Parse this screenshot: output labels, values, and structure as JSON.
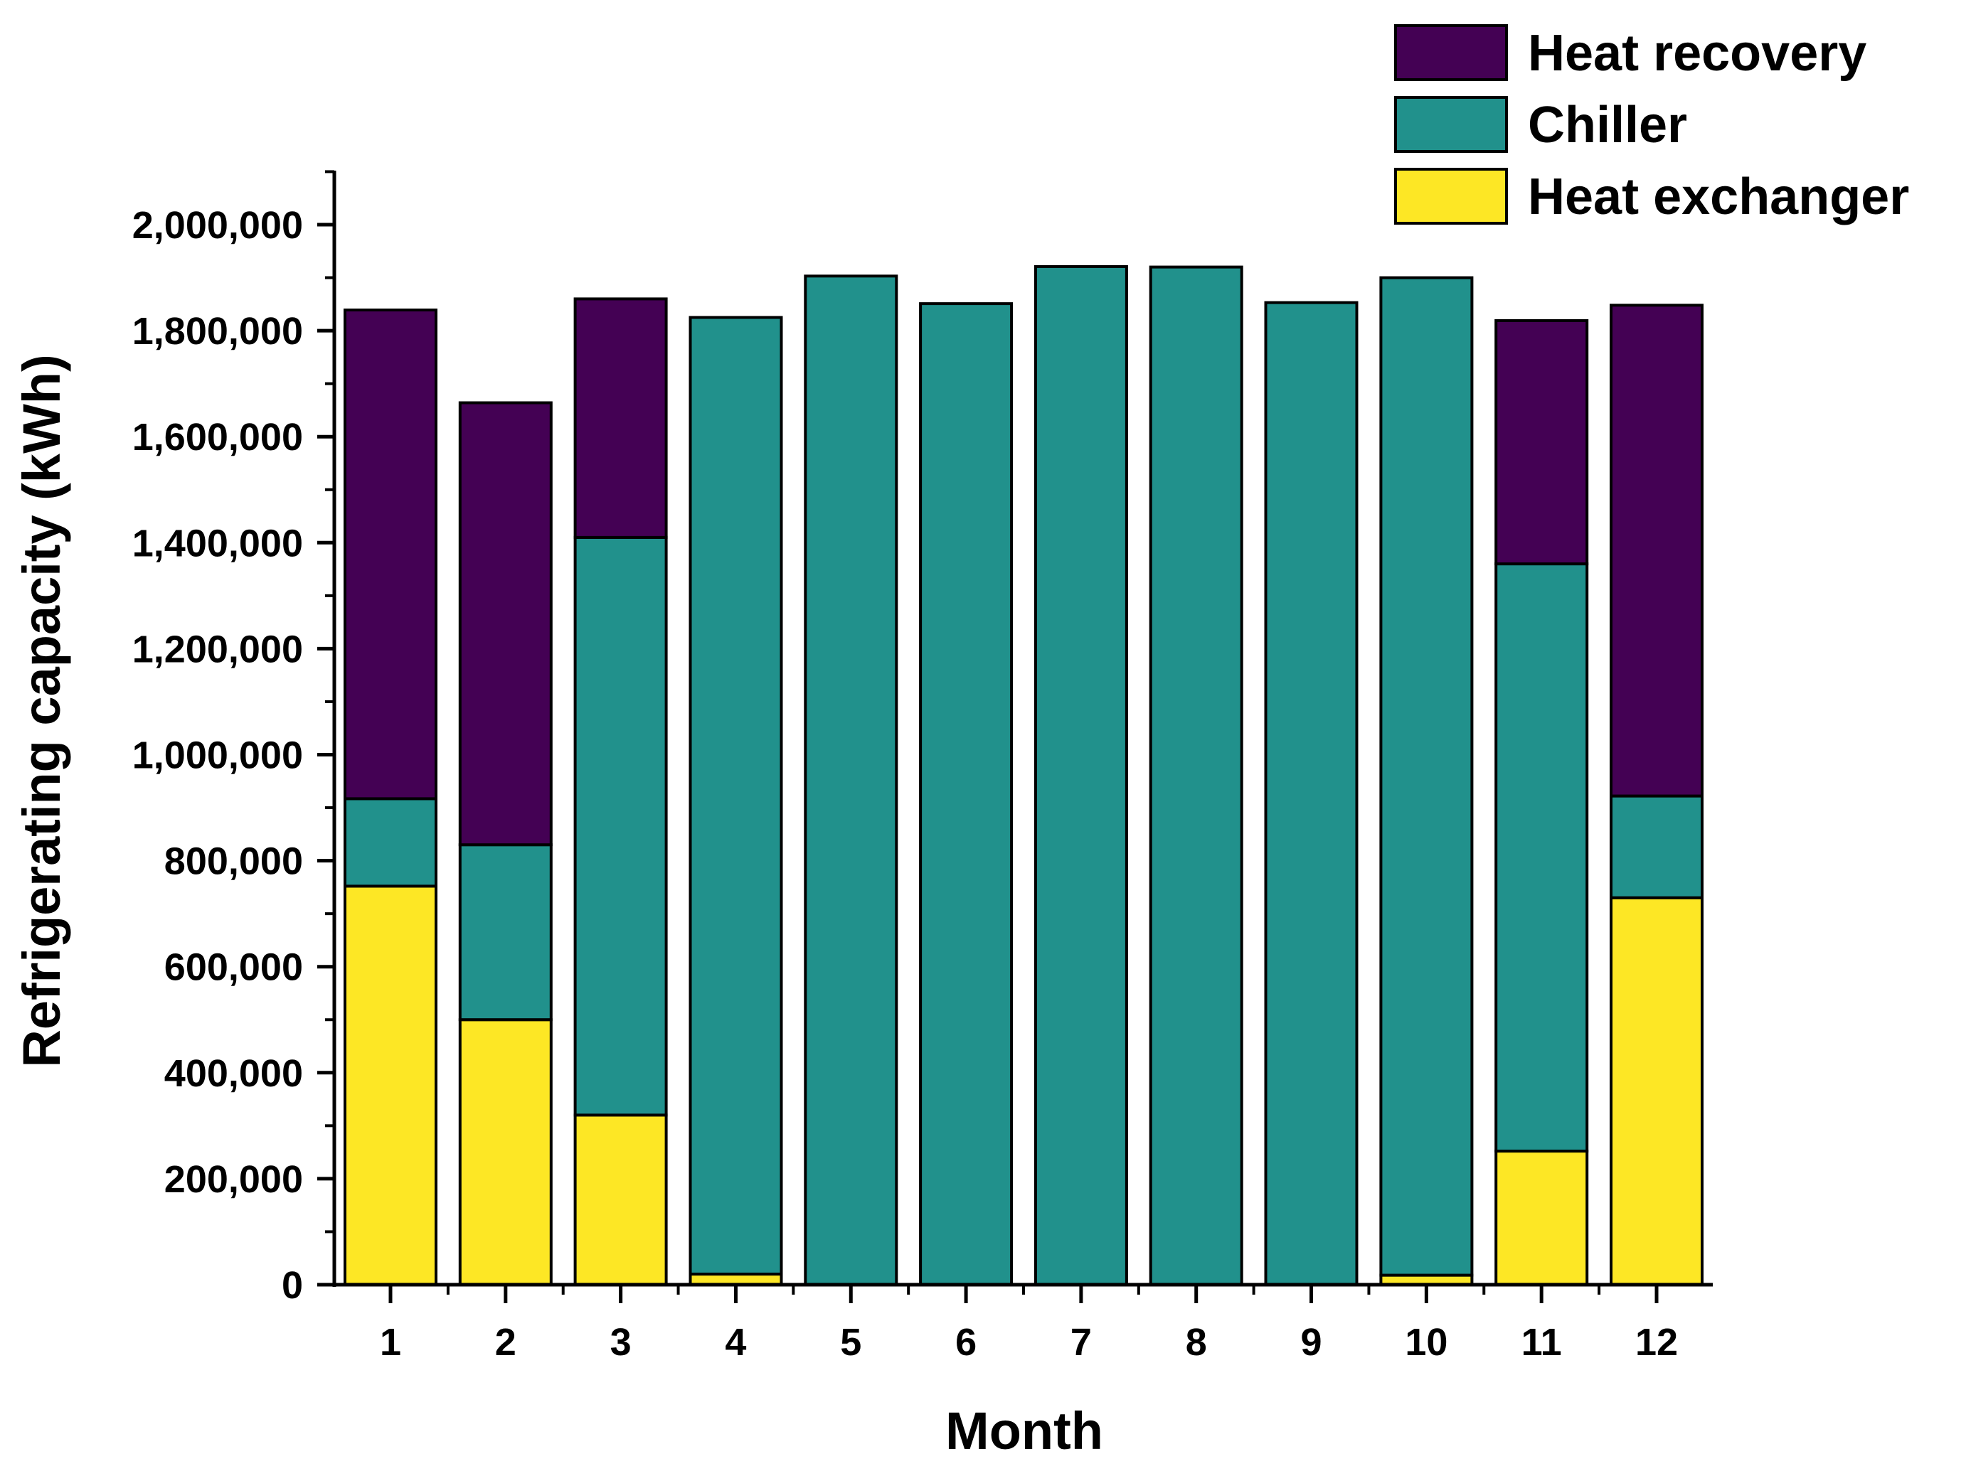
{
  "chart_data": {
    "type": "bar",
    "stacked": true,
    "title": "",
    "xlabel": "Month",
    "ylabel": "Refrigerating capacity (kWh)",
    "ylim": [
      0,
      2100000
    ],
    "ymajor_ticks": [
      0,
      200000,
      400000,
      600000,
      800000,
      1000000,
      1200000,
      1400000,
      1600000,
      1800000,
      2000000
    ],
    "ytick_labels": [
      "0",
      "200,000",
      "400,000",
      "600,000",
      "800,000",
      "1,000,000",
      "1,200,000",
      "1,400,000",
      "1,600,000",
      "1,800,000",
      "2,000,000"
    ],
    "categories": [
      "1",
      "2",
      "3",
      "4",
      "5",
      "6",
      "7",
      "8",
      "9",
      "10",
      "11",
      "12"
    ],
    "grid": false,
    "legend_position": "top-right",
    "series": [
      {
        "name": "Heat exchanger",
        "color": "#FDE725",
        "values": [
          752000,
          500000,
          320000,
          20000,
          0,
          0,
          0,
          0,
          0,
          18000,
          252000,
          730000
        ]
      },
      {
        "name": "Chiller",
        "color": "#21918C",
        "values": [
          165000,
          330000,
          1090000,
          1805000,
          1903000,
          1851000,
          1921000,
          1920000,
          1853000,
          1882000,
          1108000,
          192000
        ]
      },
      {
        "name": "Heat recovery",
        "color": "#440154",
        "values": [
          922000,
          834000,
          450000,
          0,
          0,
          0,
          0,
          0,
          0,
          0,
          459000,
          926000
        ]
      }
    ],
    "legend": [
      {
        "label": "Heat recovery",
        "color": "#440154"
      },
      {
        "label": "Chiller",
        "color": "#21918C"
      },
      {
        "label": "Heat exchanger",
        "color": "#FDE725"
      }
    ]
  }
}
